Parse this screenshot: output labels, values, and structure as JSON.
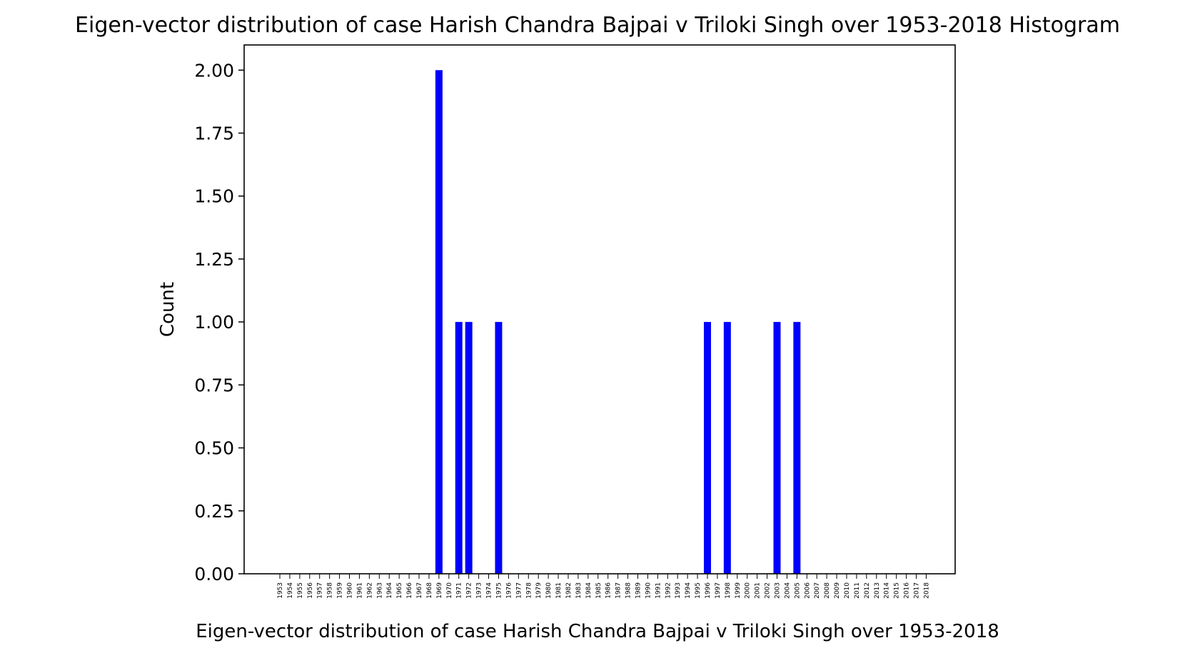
{
  "chart_data": {
    "type": "bar",
    "title": "Eigen-vector distribution of case Harish Chandra Bajpai v Triloki Singh over 1953-2018 Histogram",
    "xlabel": "Eigen-vector distribution of case Harish Chandra Bajpai v Triloki Singh over 1953-2018",
    "ylabel": "Count",
    "ylim": [
      0,
      2.1
    ],
    "yticks": [
      "0.00",
      "0.25",
      "0.50",
      "0.75",
      "1.00",
      "1.25",
      "1.50",
      "1.75",
      "2.00"
    ],
    "categories": [
      "1953",
      "1954",
      "1955",
      "1956",
      "1957",
      "1958",
      "1959",
      "1960",
      "1961",
      "1962",
      "1963",
      "1964",
      "1965",
      "1966",
      "1967",
      "1968",
      "1969",
      "1970",
      "1971",
      "1972",
      "1973",
      "1974",
      "1975",
      "1976",
      "1977",
      "1978",
      "1979",
      "1980",
      "1981",
      "1982",
      "1983",
      "1984",
      "1985",
      "1986",
      "1987",
      "1988",
      "1989",
      "1990",
      "1991",
      "1992",
      "1993",
      "1994",
      "1995",
      "1996",
      "1997",
      "1998",
      "1999",
      "2000",
      "2001",
      "2002",
      "2003",
      "2004",
      "2005",
      "2006",
      "2007",
      "2008",
      "2009",
      "2010",
      "2011",
      "2012",
      "2013",
      "2014",
      "2015",
      "2016",
      "2017",
      "2018"
    ],
    "values": [
      0,
      0,
      0,
      0,
      0,
      0,
      0,
      0,
      0,
      0,
      0,
      0,
      0,
      0,
      0,
      0,
      2,
      0,
      1,
      1,
      0,
      0,
      1,
      0,
      0,
      0,
      0,
      0,
      0,
      0,
      0,
      0,
      0,
      0,
      0,
      0,
      0,
      0,
      0,
      0,
      0,
      0,
      0,
      1,
      0,
      1,
      0,
      0,
      0,
      0,
      1,
      0,
      1,
      0,
      0,
      0,
      0,
      0,
      0,
      0,
      0,
      0,
      0,
      0,
      0,
      0
    ],
    "bar_color": "#0000ff",
    "grid": false,
    "legend": "none"
  }
}
